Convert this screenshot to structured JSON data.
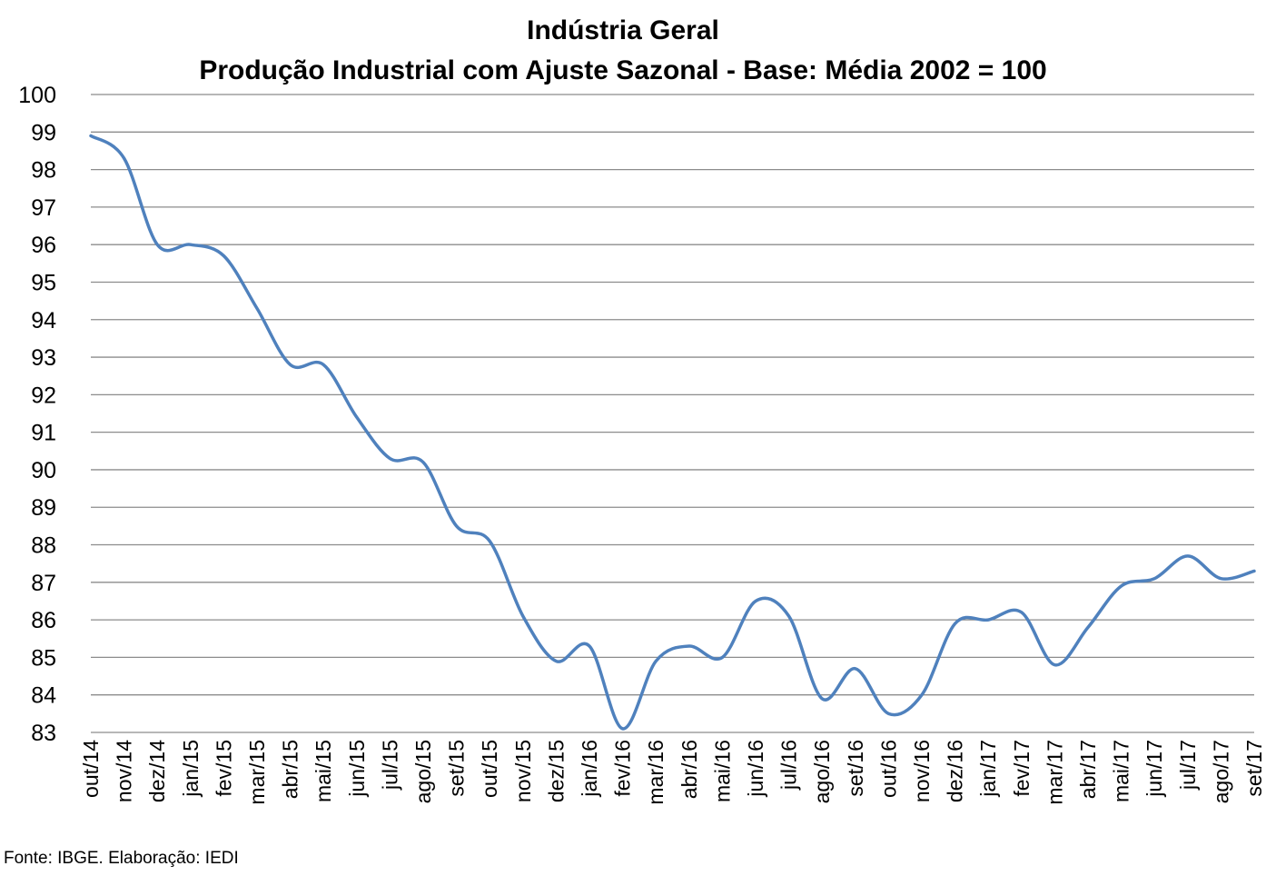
{
  "chart_data": {
    "type": "line",
    "title": "Indústria Geral",
    "subtitle": "Produção Industrial com Ajuste Sazonal - Base: Média 2002 = 100",
    "xlabel": "",
    "ylabel": "",
    "ylim": [
      83,
      100
    ],
    "yticks": [
      83,
      84,
      85,
      86,
      87,
      88,
      89,
      90,
      91,
      92,
      93,
      94,
      95,
      96,
      97,
      98,
      99,
      100
    ],
    "grid": true,
    "legend": "none",
    "categories": [
      "out/14",
      "nov/14",
      "dez/14",
      "jan/15",
      "fev/15",
      "mar/15",
      "abr/15",
      "mai/15",
      "jun/15",
      "jul/15",
      "ago/15",
      "set/15",
      "out/15",
      "nov/15",
      "dez/15",
      "jan/16",
      "fev/16",
      "mar/16",
      "abr/16",
      "mai/16",
      "jun/16",
      "jul/16",
      "ago/16",
      "set/16",
      "out/16",
      "nov/16",
      "dez/16",
      "jan/17",
      "fev/17",
      "mar/17",
      "abr/17",
      "mai/17",
      "jun/17",
      "jul/17",
      "ago/17",
      "set/17"
    ],
    "series": [
      {
        "color": "#4f81bd",
        "values": [
          98.9,
          98.3,
          96.0,
          96.0,
          95.7,
          94.3,
          92.8,
          92.8,
          91.4,
          90.3,
          90.2,
          88.5,
          88.1,
          86.1,
          84.9,
          85.3,
          83.1,
          84.9,
          85.3,
          85.0,
          86.5,
          86.1,
          83.9,
          84.7,
          83.5,
          84.0,
          85.9,
          86.0,
          86.2,
          84.8,
          85.8,
          86.9,
          87.1,
          87.7,
          87.1,
          87.3
        ]
      }
    ]
  },
  "footer": {
    "source": "Fonte: IBGE. Elaboração: IEDI"
  }
}
